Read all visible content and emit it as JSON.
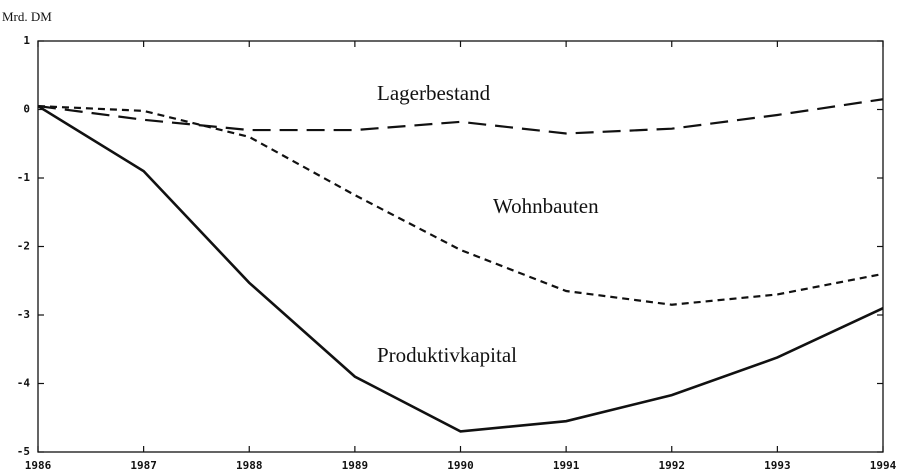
{
  "chart_data": {
    "type": "line",
    "y_label": "Mrd. DM",
    "x": [
      1986,
      1987,
      1988,
      1989,
      1990,
      1991,
      1992,
      1993,
      1994
    ],
    "series": [
      {
        "name": "Lagerbestand",
        "color": "#111111",
        "dash": "long",
        "values": [
          0.05,
          -0.15,
          -0.3,
          -0.3,
          -0.18,
          -0.35,
          -0.28,
          -0.08,
          0.15
        ]
      },
      {
        "name": "Wohnbauten",
        "color": "#111111",
        "dash": "short",
        "values": [
          0.05,
          -0.02,
          -0.4,
          -1.25,
          -2.05,
          -2.65,
          -2.85,
          -2.7,
          -2.4
        ]
      },
      {
        "name": "Produktivkapital",
        "color": "#111111",
        "dash": "solid",
        "values": [
          0.05,
          -0.9,
          -2.53,
          -3.9,
          -4.7,
          -4.55,
          -4.17,
          -3.62,
          -2.9
        ]
      }
    ],
    "xlim": [
      1986,
      1994
    ],
    "xticks": [
      1986,
      1987,
      1988,
      1989,
      1990,
      1991,
      1992,
      1993,
      1994
    ],
    "ylim": [
      -5,
      1
    ],
    "yticks": [
      -5,
      -4,
      -3,
      -2,
      -1,
      0,
      1
    ],
    "grid": false
  }
}
